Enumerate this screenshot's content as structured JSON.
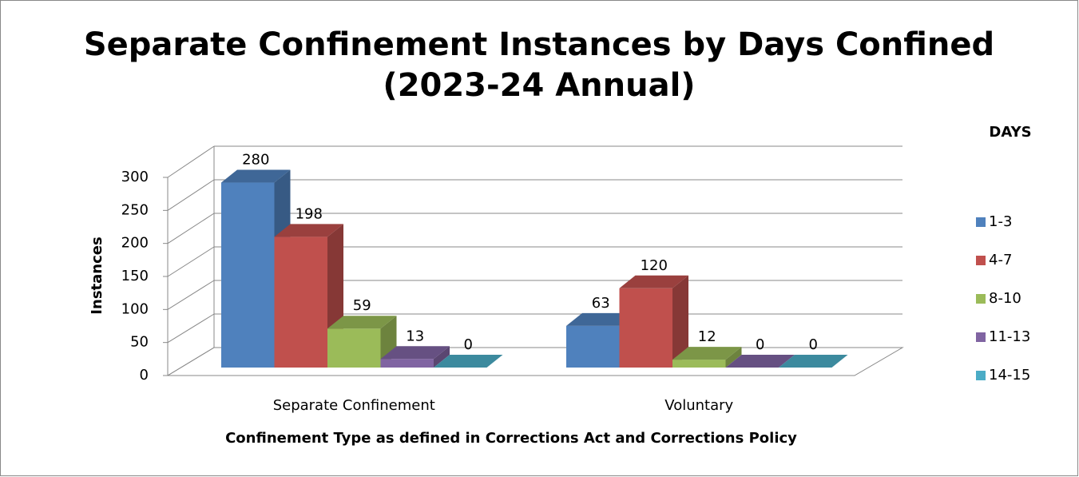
{
  "chart_data": {
    "type": "bar3d",
    "title": [
      "Separate Confinement Instances by Days Confined",
      "(2023-24 Annual)"
    ],
    "x_label": "Confinement Type as defined in Corrections Act and Corrections Policy",
    "y_label": "Instances",
    "legend_title": "DAYS",
    "legend_position": "right",
    "categories": [
      "Separate Confinement",
      "Voluntary"
    ],
    "series": [
      {
        "name": "1-3",
        "color": "#4f81bd",
        "values": [
          280,
          63
        ]
      },
      {
        "name": "4-7",
        "color": "#c0504d",
        "values": [
          198,
          120
        ]
      },
      {
        "name": "8-10",
        "color": "#9bbb59",
        "values": [
          59,
          12
        ]
      },
      {
        "name": "11-13",
        "color": "#8064a2",
        "values": [
          13,
          0
        ]
      },
      {
        "name": "14-15",
        "color": "#4bacc6",
        "values": [
          0,
          0
        ]
      }
    ],
    "ylim": [
      0,
      300
    ],
    "yticks": [
      0,
      50,
      100,
      150,
      200,
      250,
      300
    ],
    "grid": true
  }
}
